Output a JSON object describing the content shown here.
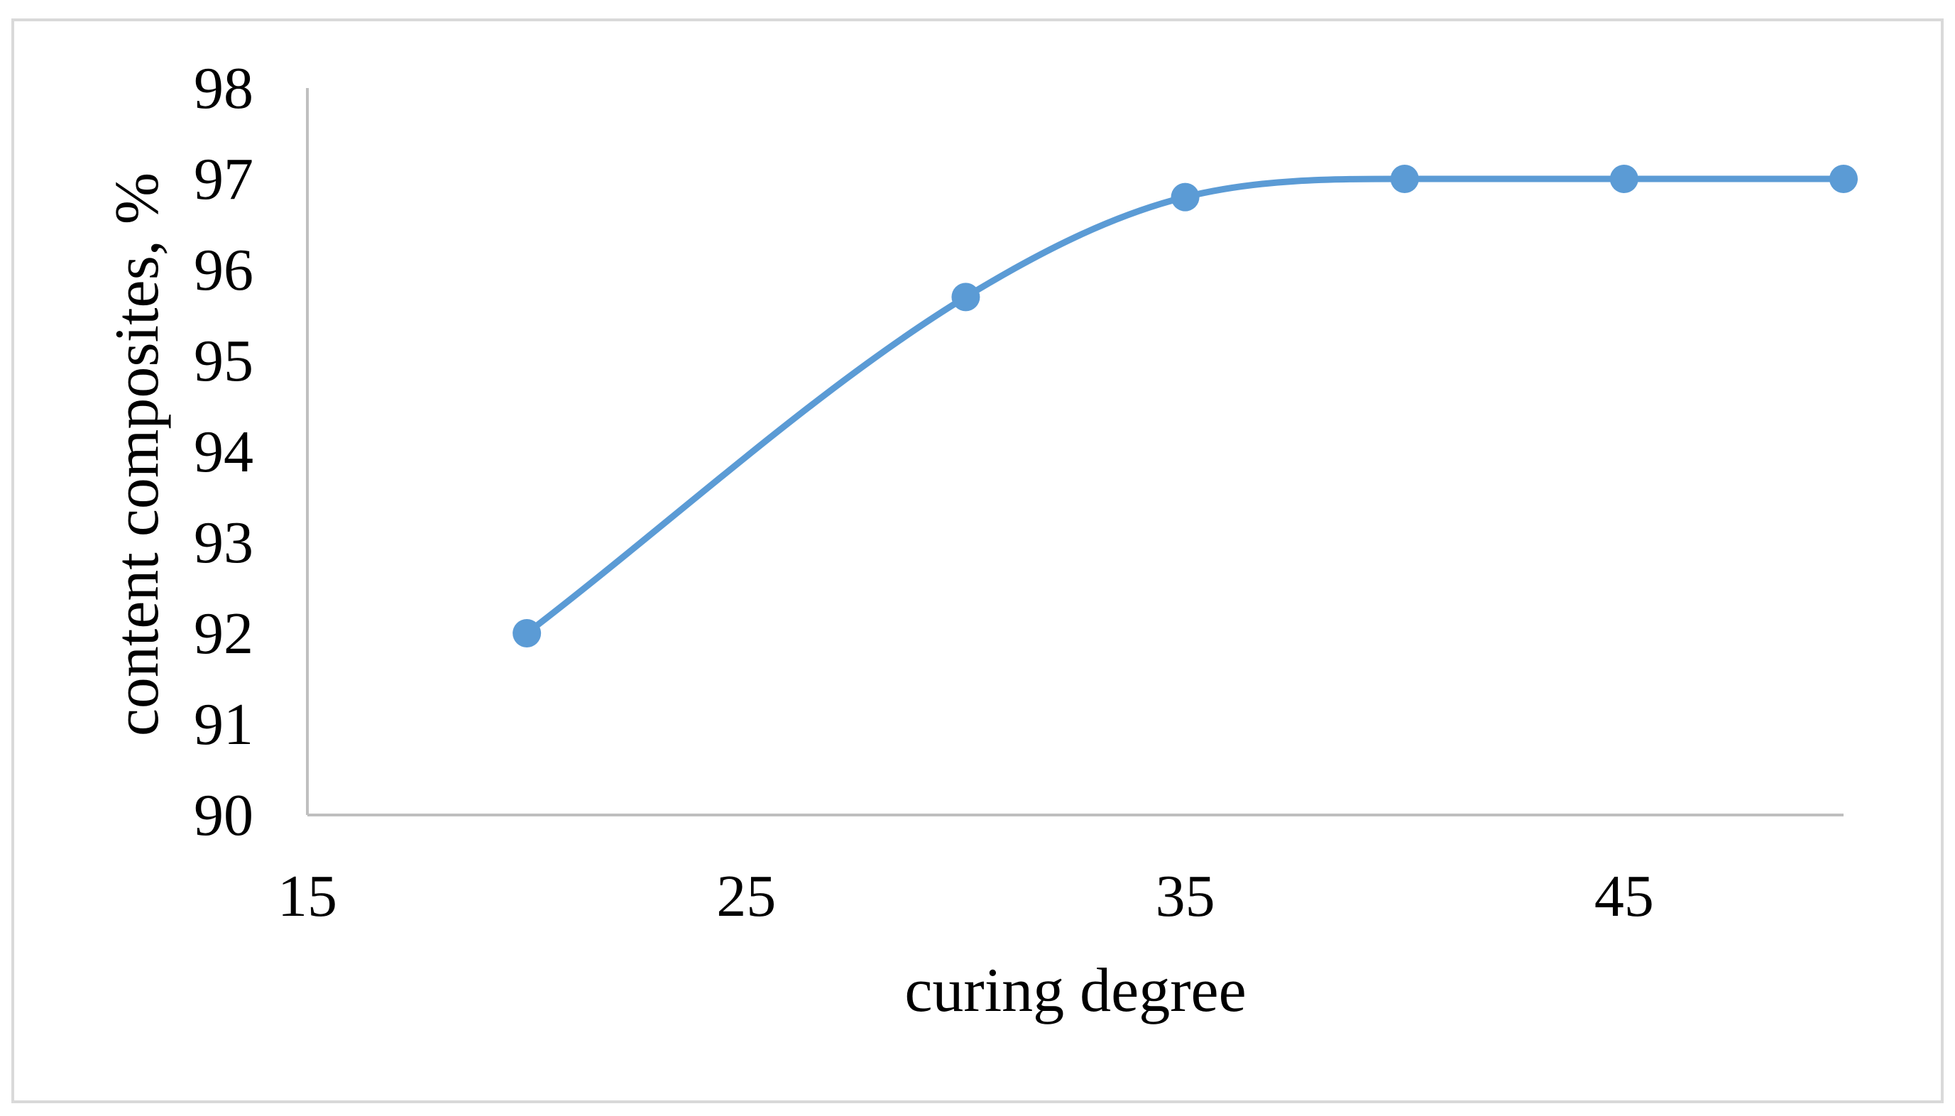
{
  "chart_data": {
    "type": "line",
    "title": "",
    "xlabel": "curing degree",
    "ylabel": "content composites, %",
    "xlim": [
      15,
      50
    ],
    "ylim": [
      90,
      98
    ],
    "x_ticks": [
      15,
      25,
      35,
      45
    ],
    "y_ticks": [
      90,
      91,
      92,
      93,
      94,
      95,
      96,
      97,
      98
    ],
    "grid": false,
    "legend": "none",
    "smooth": true,
    "series": [
      {
        "color": "#5B9BD5",
        "points": [
          {
            "x": 20,
            "y": 92.0
          },
          {
            "x": 30,
            "y": 95.7
          },
          {
            "x": 35,
            "y": 96.8
          },
          {
            "x": 40,
            "y": 97.0
          },
          {
            "x": 45,
            "y": 97.0
          },
          {
            "x": 50,
            "y": 97.0
          }
        ]
      }
    ]
  }
}
